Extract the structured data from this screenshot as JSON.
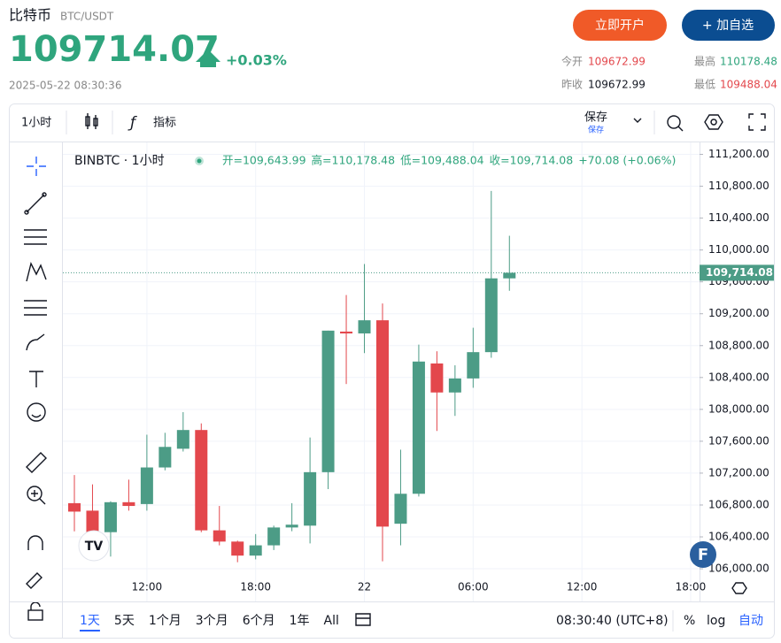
{
  "header": {
    "name": "比特币",
    "pair": "BTC/USDT",
    "price": "109714.07",
    "change": "+0.03%",
    "datetime": "2025-05-22 08:30:36",
    "buttons": [
      "立即开户",
      "+ 加自选"
    ]
  },
  "stats": [
    {
      "label": "今开",
      "value": "109672.99"
    },
    {
      "label": "最高",
      "value": "110178.48"
    },
    {
      "label": "昨收",
      "value": "109672.99"
    },
    {
      "label": "最低",
      "value": "109488.04"
    }
  ],
  "toolbar": {
    "interval": "1小时",
    "indicators": "指标",
    "save": "保存",
    "save_sub": "保存"
  },
  "chart_data": {
    "type": "candlestick",
    "symbol_label": "BINBTC · 1小时",
    "legend": [
      "开=109,643.99",
      "高=110,178.48",
      "低=109,488.04",
      "收=109,714.08",
      "+70.08 (+0.06%)"
    ],
    "up_color": "#4c9c86",
    "down_color": "#e3474c",
    "categories": [
      null,
      null,
      null,
      null,
      "12:00",
      null,
      null,
      null,
      null,
      null,
      "18:00",
      null,
      null,
      null,
      null,
      null,
      "22",
      null,
      null,
      null,
      null,
      null,
      "06:00",
      null,
      null,
      null,
      null,
      null,
      "12:00",
      null,
      null,
      null,
      null,
      null,
      "18:00"
    ],
    "open": [
      106823,
      106729,
      106459,
      106835,
      106812,
      107271,
      107506,
      107741,
      106482,
      106341,
      106165,
      106294,
      106518,
      106541,
      107212,
      108976,
      108953,
      109118,
      106565,
      106941,
      108576,
      108212,
      108388,
      108718,
      109643.99,
      null,
      null,
      null,
      null,
      null,
      null,
      null,
      null,
      null,
      null
    ],
    "high": [
      107176,
      107059,
      106847,
      107118,
      107682,
      107706,
      107965,
      107824,
      106788,
      106353,
      106435,
      106541,
      106823,
      107647,
      108988,
      109435,
      109824,
      109329,
      107494,
      108812,
      108729,
      108553,
      109024,
      110741,
      110178.48,
      null,
      null,
      null,
      null,
      null,
      null,
      null,
      null,
      null,
      null
    ],
    "low": [
      106470,
      106412,
      106153,
      106729,
      106729,
      107235,
      107471,
      106459,
      106294,
      106082,
      106118,
      106235,
      106471,
      106318,
      107000,
      108318,
      108706,
      106094,
      106294,
      106906,
      107729,
      107918,
      108271,
      108647,
      109488.04,
      null,
      null,
      null,
      null,
      null,
      null,
      null,
      null,
      null,
      null
    ],
    "close": [
      106717,
      106459,
      106835,
      106788,
      107271,
      107529,
      107741,
      106482,
      106341,
      106165,
      106294,
      106518,
      106553,
      107212,
      108988,
      108953,
      109118,
      106529,
      106941,
      108600,
      108212,
      108388,
      108718,
      109644,
      109714.08,
      null,
      null,
      null,
      null,
      null,
      null,
      null,
      null,
      null,
      null
    ],
    "last_value_label": "109,714.08",
    "ylim": [
      105590,
      111350
    ],
    "yticks": [
      {
        "value": 106000,
        "label": "106,000.00"
      },
      {
        "value": 106400,
        "label": "106,400.00"
      },
      {
        "value": 106800,
        "label": "106,800.00"
      },
      {
        "value": 107200,
        "label": "107,200.00"
      },
      {
        "value": 107600,
        "label": "107,600.00"
      },
      {
        "value": 108000,
        "label": "108,000.00"
      },
      {
        "value": 108400,
        "label": "108,400.00"
      },
      {
        "value": 108800,
        "label": "108,800.00"
      },
      {
        "value": 109200,
        "label": "109,200.00"
      },
      {
        "value": 109600,
        "label": "109,600.00"
      },
      {
        "value": 110000,
        "label": "110,000.00"
      },
      {
        "value": 110400,
        "label": "110,400.00"
      },
      {
        "value": 110800,
        "label": "110,800.00"
      },
      {
        "value": 111200,
        "label": "111,200.00"
      }
    ],
    "grid": true
  },
  "bottom_bar": {
    "ranges": [
      "1天",
      "5天",
      "1个月",
      "3个月",
      "6个月",
      "1年",
      "All"
    ],
    "time": "08:30:40 (UTC+8)",
    "options": [
      "%",
      "log",
      "自动"
    ]
  }
}
